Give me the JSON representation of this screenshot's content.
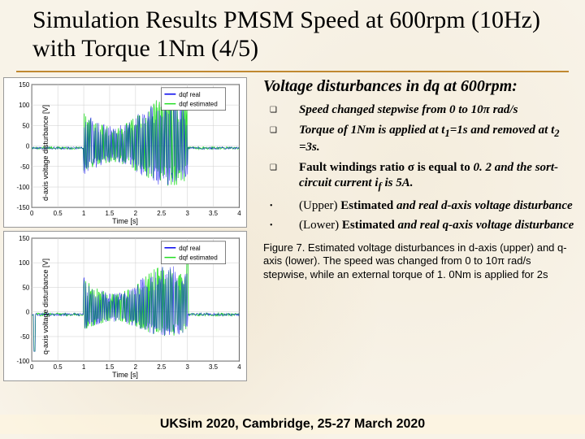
{
  "title": "Simulation Results PMSM Speed at 600rpm (10Hz) with Torque 1Nm (4/5)",
  "subheading": "Voltage disturbances in dq at 600rpm:",
  "bullets": [
    {
      "marker": "❑",
      "html": "<span class='bold-italic'>Speed changed stepwise from 0 to 10π rad/s</span>"
    },
    {
      "marker": "❑",
      "html": "<span class='bold-italic'>Torque of 1Nm is applied at t<sub>1</sub>=1s and removed at t<sub>2</sub> =3s.</span>"
    },
    {
      "marker": "❑",
      "html": "<span style='font-weight:bold'>Fault windings ratio σ is equal to</span> <span class='bold-italic'>0. 2 and the sort-circuit current i<sub>f</sub> is 5A.</span>"
    },
    {
      "marker": "•",
      "html": "(Upper) <b>Estimated</b> <span class='bold-italic'>and real d-axis voltage disturbance</span>"
    },
    {
      "marker": "•",
      "html": "(Lower) <b>Estimated</b> <span class='bold-italic'>and real q-axis voltage disturbance</span>"
    }
  ],
  "caption": "Figure 7. Estimated voltage disturbances in  d-axis (upper) and q-axis (lower). The speed was changed from 0 to 10π rad/s stepwise, while an external torque of 1. 0Nm is applied for 2s",
  "footer": "UKSim 2020, Cambridge, 25-27 March 2020",
  "chart_upper": {
    "type": "line",
    "ylabel": "d-axis voltage disturbance [V]",
    "xlabel": "Time [s]",
    "xlim": [
      0,
      4
    ],
    "xtick_step": 0.5,
    "ylim": [
      -150,
      150
    ],
    "yticks": [
      -150,
      -100,
      -50,
      0,
      50,
      100,
      150
    ],
    "grid_color": "#cccccc",
    "background_color": "#ffffff",
    "legend_items": [
      {
        "label": "dqf real",
        "color": "#0000ee"
      },
      {
        "label": "dqf estimated",
        "color": "#22dd22"
      }
    ],
    "series_real": {
      "color": "#0000ee",
      "baseline": -5,
      "noise_amp": 3,
      "pulse_regions": [
        {
          "x0": 1.0,
          "x1": 3.0,
          "amp_hi": 120,
          "amp_lo": -100
        }
      ]
    },
    "series_est": {
      "color": "#22dd22",
      "baseline": -5,
      "noise_amp": 3,
      "pulse_regions": [
        {
          "x0": 1.0,
          "x1": 3.0,
          "amp_hi": 120,
          "amp_lo": -100
        }
      ]
    }
  },
  "chart_lower": {
    "type": "line",
    "ylabel": "q-axis voltage disturbance [V]",
    "xlabel": "Time [s]",
    "xlim": [
      0,
      4
    ],
    "xtick_step": 0.5,
    "ylim": [
      -100,
      150
    ],
    "yticks": [
      -100,
      -50,
      0,
      50,
      100,
      150
    ],
    "grid_color": "#cccccc",
    "background_color": "#ffffff",
    "legend_items": [
      {
        "label": "dqf real",
        "color": "#0000ee"
      },
      {
        "label": "dqf estimated",
        "color": "#22dd22"
      }
    ],
    "series_real": {
      "color": "#0000ee",
      "baseline": -5,
      "spike": {
        "x": 0.05,
        "val": -80
      },
      "noise_amp": 3,
      "pulse_regions": [
        {
          "x0": 1.0,
          "x1": 3.0,
          "amp_hi": 95,
          "amp_lo": -50
        }
      ]
    },
    "series_est": {
      "color": "#22dd22",
      "baseline": -5,
      "spike": {
        "x": 0.05,
        "val": -80
      },
      "noise_amp": 3,
      "pulse_regions": [
        {
          "x0": 1.0,
          "x1": 3.0,
          "amp_hi": 95,
          "amp_lo": -50
        }
      ],
      "spike2": {
        "x": 3.0,
        "val": 120
      }
    }
  }
}
